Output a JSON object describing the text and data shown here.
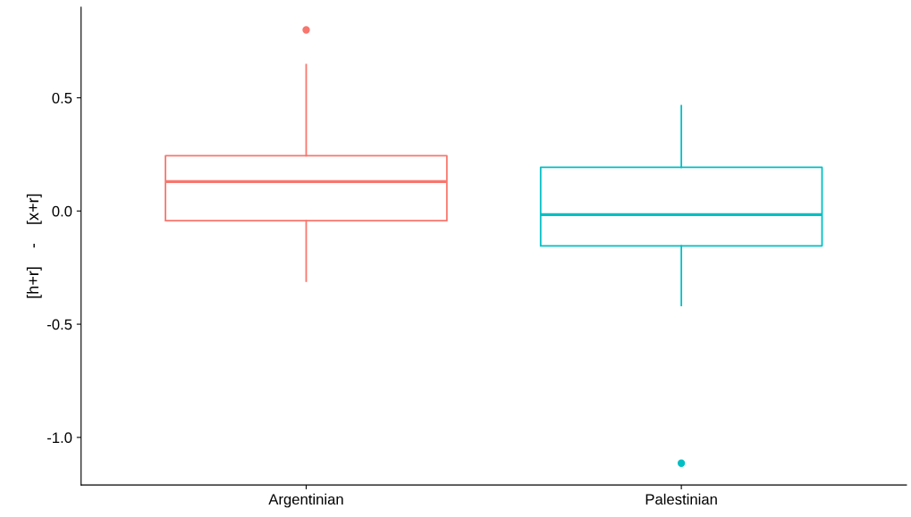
{
  "chart_data": {
    "type": "box",
    "ylabel": "[h+r]    -    [x+r]",
    "categories": [
      "Argentinian",
      "Palestinian"
    ],
    "colors": [
      "#f8766d",
      "#00bfc4"
    ],
    "boxes": [
      {
        "low": -0.31,
        "q1": -0.043,
        "median": 0.13,
        "q3": 0.244,
        "high": 0.646,
        "outliers": [
          0.8
        ]
      },
      {
        "low": -0.417,
        "q1": -0.154,
        "median": -0.016,
        "q3": 0.193,
        "high": 0.465,
        "outliers": [
          -1.114
        ]
      }
    ],
    "ylim": [
      -1.21,
      0.9
    ],
    "yticks": [
      {
        "value": -1,
        "label": "-1.0"
      },
      -0.5,
      {
        "value": 0,
        "label": "0.0"
      },
      0.5
    ],
    "grid": false,
    "legend": false
  }
}
